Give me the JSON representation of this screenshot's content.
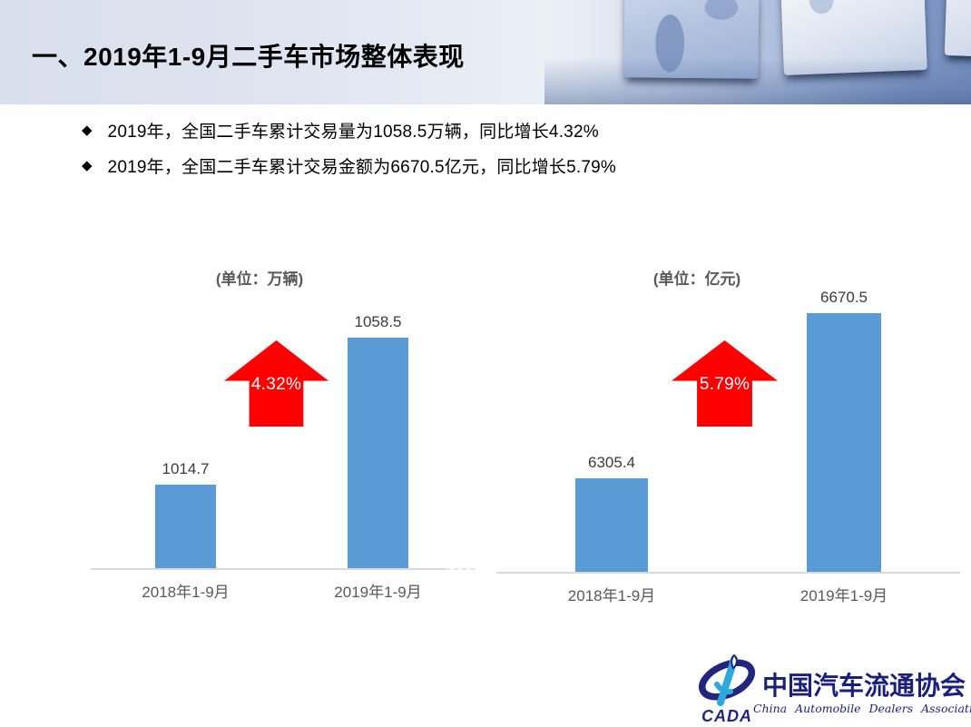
{
  "slide": {
    "title": "一、2019年1-9月二手车市场整体表现",
    "bullets": [
      {
        "marker": "◆",
        "text": "2019年，全国二手车累计交易量为1058.5万辆，同比增长4.32%"
      },
      {
        "marker": "◆",
        "text": "2019年，全国二手车累计交易金额为6670.5亿元，同比增长5.79%"
      }
    ]
  },
  "chart_data": [
    {
      "type": "bar",
      "title": "(单位：万辆)",
      "categories": [
        "2018年1-9月",
        "2019年1-9月"
      ],
      "values": [
        1014.7,
        1058.5
      ],
      "data_labels": [
        "1014.7",
        "1058.5"
      ],
      "growth_annotation": "4.32%",
      "ylim": [
        990,
        1068
      ],
      "bar_color": "#5B9BD5",
      "arrow_color": "#FE0000",
      "grid": false,
      "legend": "none"
    },
    {
      "type": "bar",
      "title": "(单位：亿元)",
      "categories": [
        "2018年1-9月",
        "2019年1-9月"
      ],
      "values": [
        6305.4,
        6670.5
      ],
      "data_labels": [
        "6305.4",
        "6670.5"
      ],
      "growth_annotation": "5.79%",
      "ylim": [
        6100,
        6700
      ],
      "bar_color": "#5B9BD5",
      "arrow_color": "#FE0000",
      "grid": false,
      "legend": "none"
    }
  ],
  "footer_logo": {
    "acronym": "CADA",
    "name_zh": "中国汽车流通协会",
    "name_en": "China Automobile Dealers Association"
  },
  "theme": {
    "bar_color": "#5B9BD5",
    "arrow_red": "#FE0000",
    "axis_gray": "#D9D9D9",
    "label_gray": "#595959",
    "logo_navy": "#23267F",
    "logo_cyan": "#2FA8DC",
    "header_bg_left": "#DCE3EF",
    "header_bg_right": "#7690BF"
  }
}
